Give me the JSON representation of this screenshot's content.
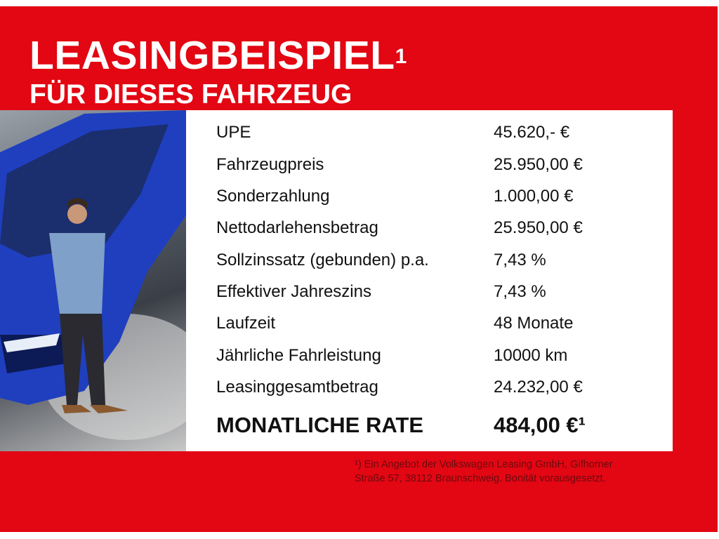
{
  "header": {
    "title": "LEASINGBEISPIEL",
    "title_sup": "1",
    "subtitle": "FÜR DIESES FAHRZEUG"
  },
  "colors": {
    "background": "#e30613",
    "panel": "#ffffff",
    "car": "#1f3fbf"
  },
  "image": {
    "icon": "car-photo-with-man"
  },
  "rows": [
    {
      "label": "UPE",
      "value": "45.620,- €"
    },
    {
      "label": "Fahrzeugpreis",
      "value": "25.950,00 €"
    },
    {
      "label": "Sonderzahlung",
      "value": "1.000,00 €"
    },
    {
      "label": "Nettodarlehensbetrag",
      "value": "25.950,00 €"
    },
    {
      "label": "Sollzinssatz (gebunden) p.a.",
      "value": "7,43 %"
    },
    {
      "label": "Effektiver Jahreszins",
      "value": "7,43 %"
    },
    {
      "label": "Laufzeit",
      "value": "48 Monate"
    },
    {
      "label": "Jährliche Fahrleistung",
      "value": "10000 km"
    },
    {
      "label": "Leasinggesamtbetrag",
      "value": "24.232,00 €"
    }
  ],
  "total": {
    "label": "MONATLICHE RATE",
    "value": "484,00 €¹"
  },
  "footnote": {
    "line1": "¹) Ein Angebot der Volkswagen Leasing GmbH, Gifhorner",
    "line2": "Straße 57, 38112 Braunschweig. Bonität vorausgesetzt."
  }
}
